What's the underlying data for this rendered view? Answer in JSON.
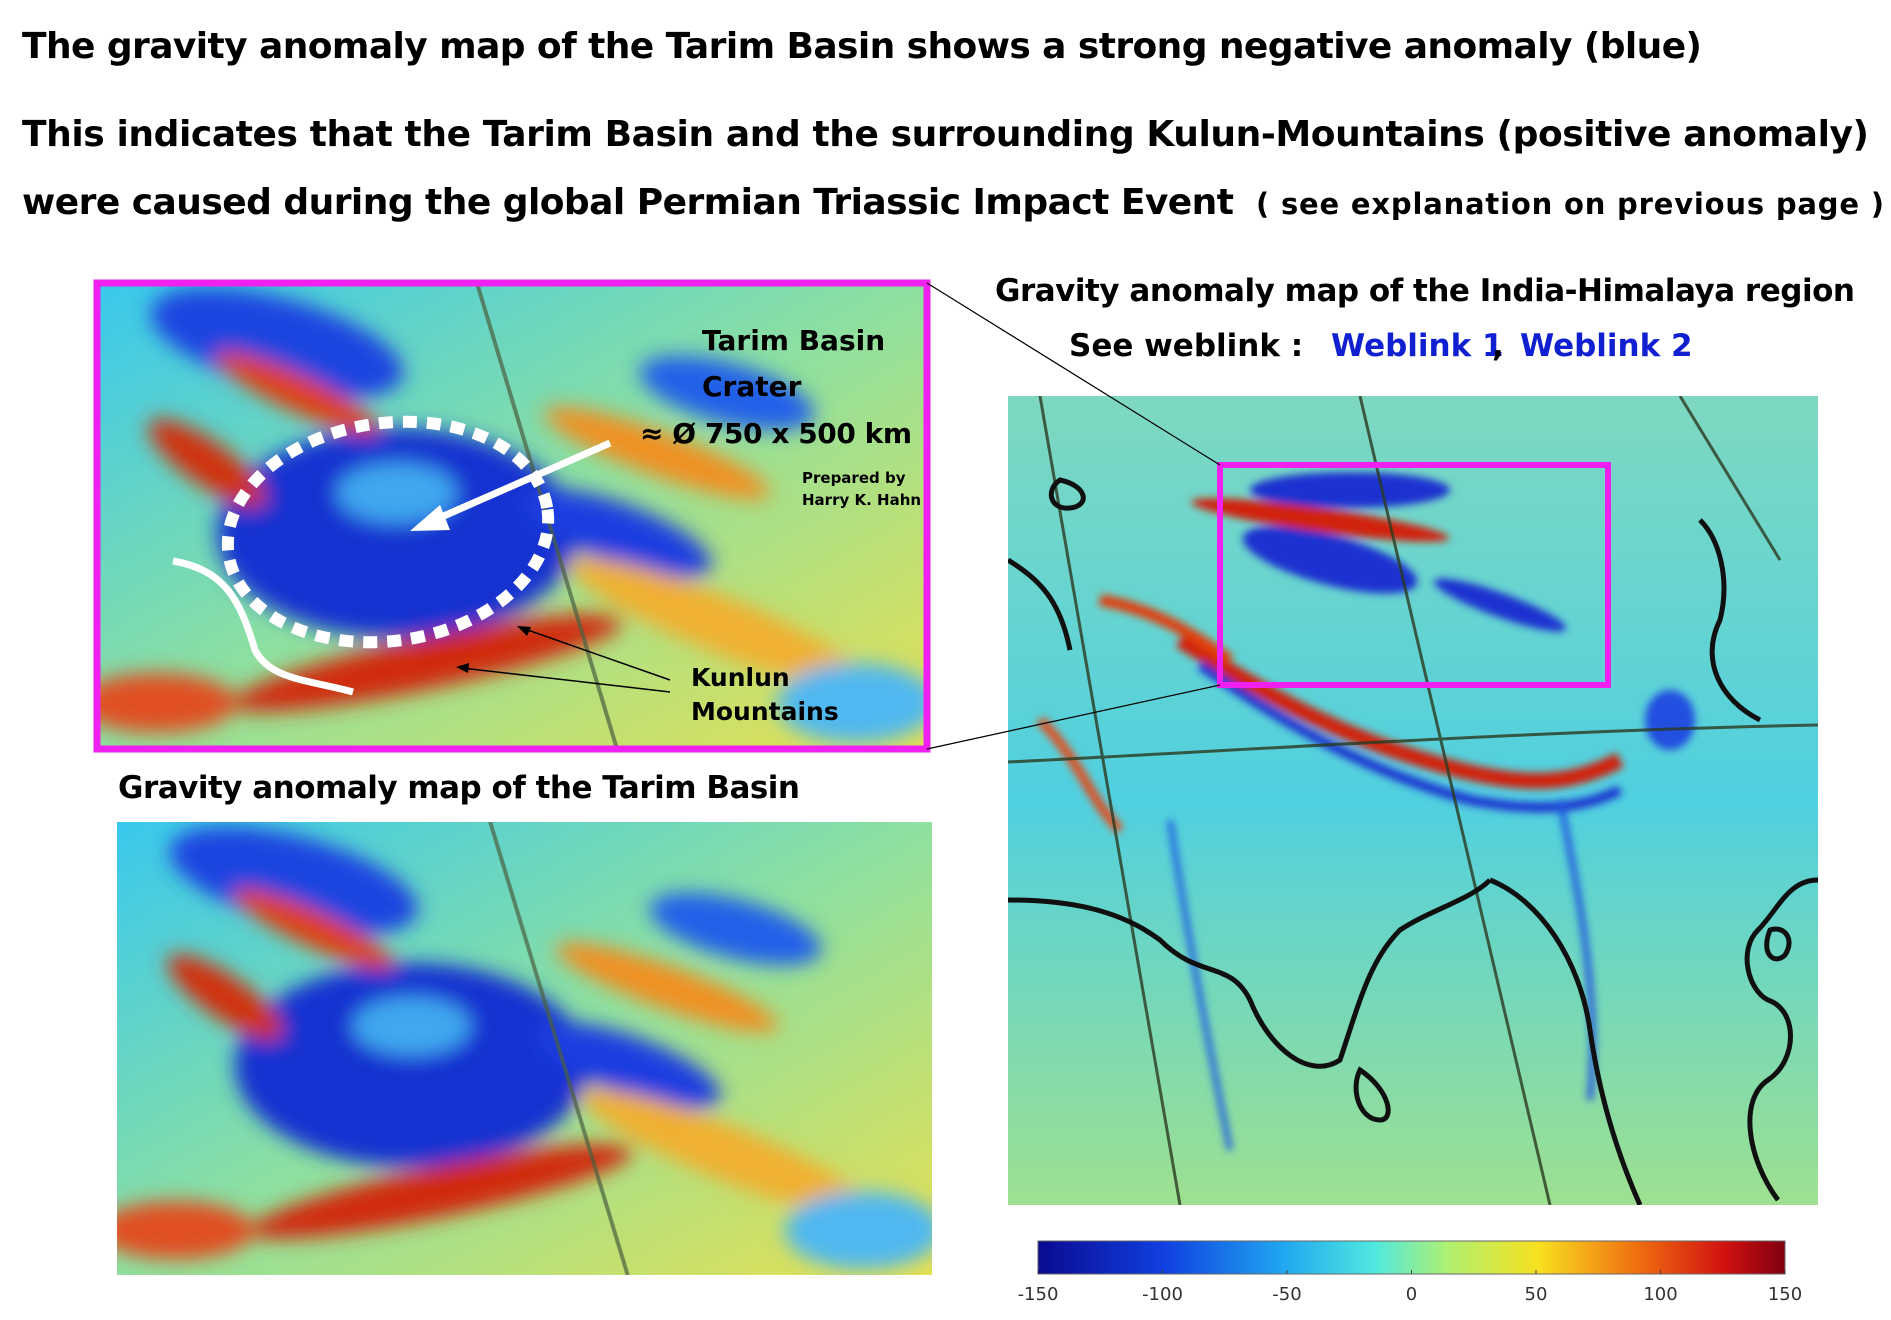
{
  "header": {
    "line1": "The gravity anomaly map of the Tarim Basin shows a strong negative anomaly (blue)",
    "line2": "This indicates that the Tarim Basin and the surrounding Kulun-Mountains (positive anomaly)",
    "line3": "were caused during the global Permian Triassic Impact Event",
    "line3_note": "( see explanation on previous page )"
  },
  "tarim_map": {
    "label_title": "Tarim Basin",
    "label_crater": "Crater",
    "label_size": "≈ Ø 750 x 500 km",
    "credit": [
      "Prepared by",
      "Harry K. Hahn"
    ],
    "kunlun": [
      "Kunlun",
      "Mountains"
    ],
    "caption": "Gravity anomaly map of the Tarim Basin"
  },
  "india_map": {
    "title": "Gravity anomaly map of the India-Himalaya region",
    "weblink_label": "See weblink :",
    "links": [
      "Weblink 1",
      "Weblink 2"
    ],
    "separator": ","
  },
  "colorbar": {
    "range": [
      -150,
      150
    ],
    "ticks": [
      -150,
      -100,
      -50,
      0,
      50,
      100,
      150
    ]
  }
}
